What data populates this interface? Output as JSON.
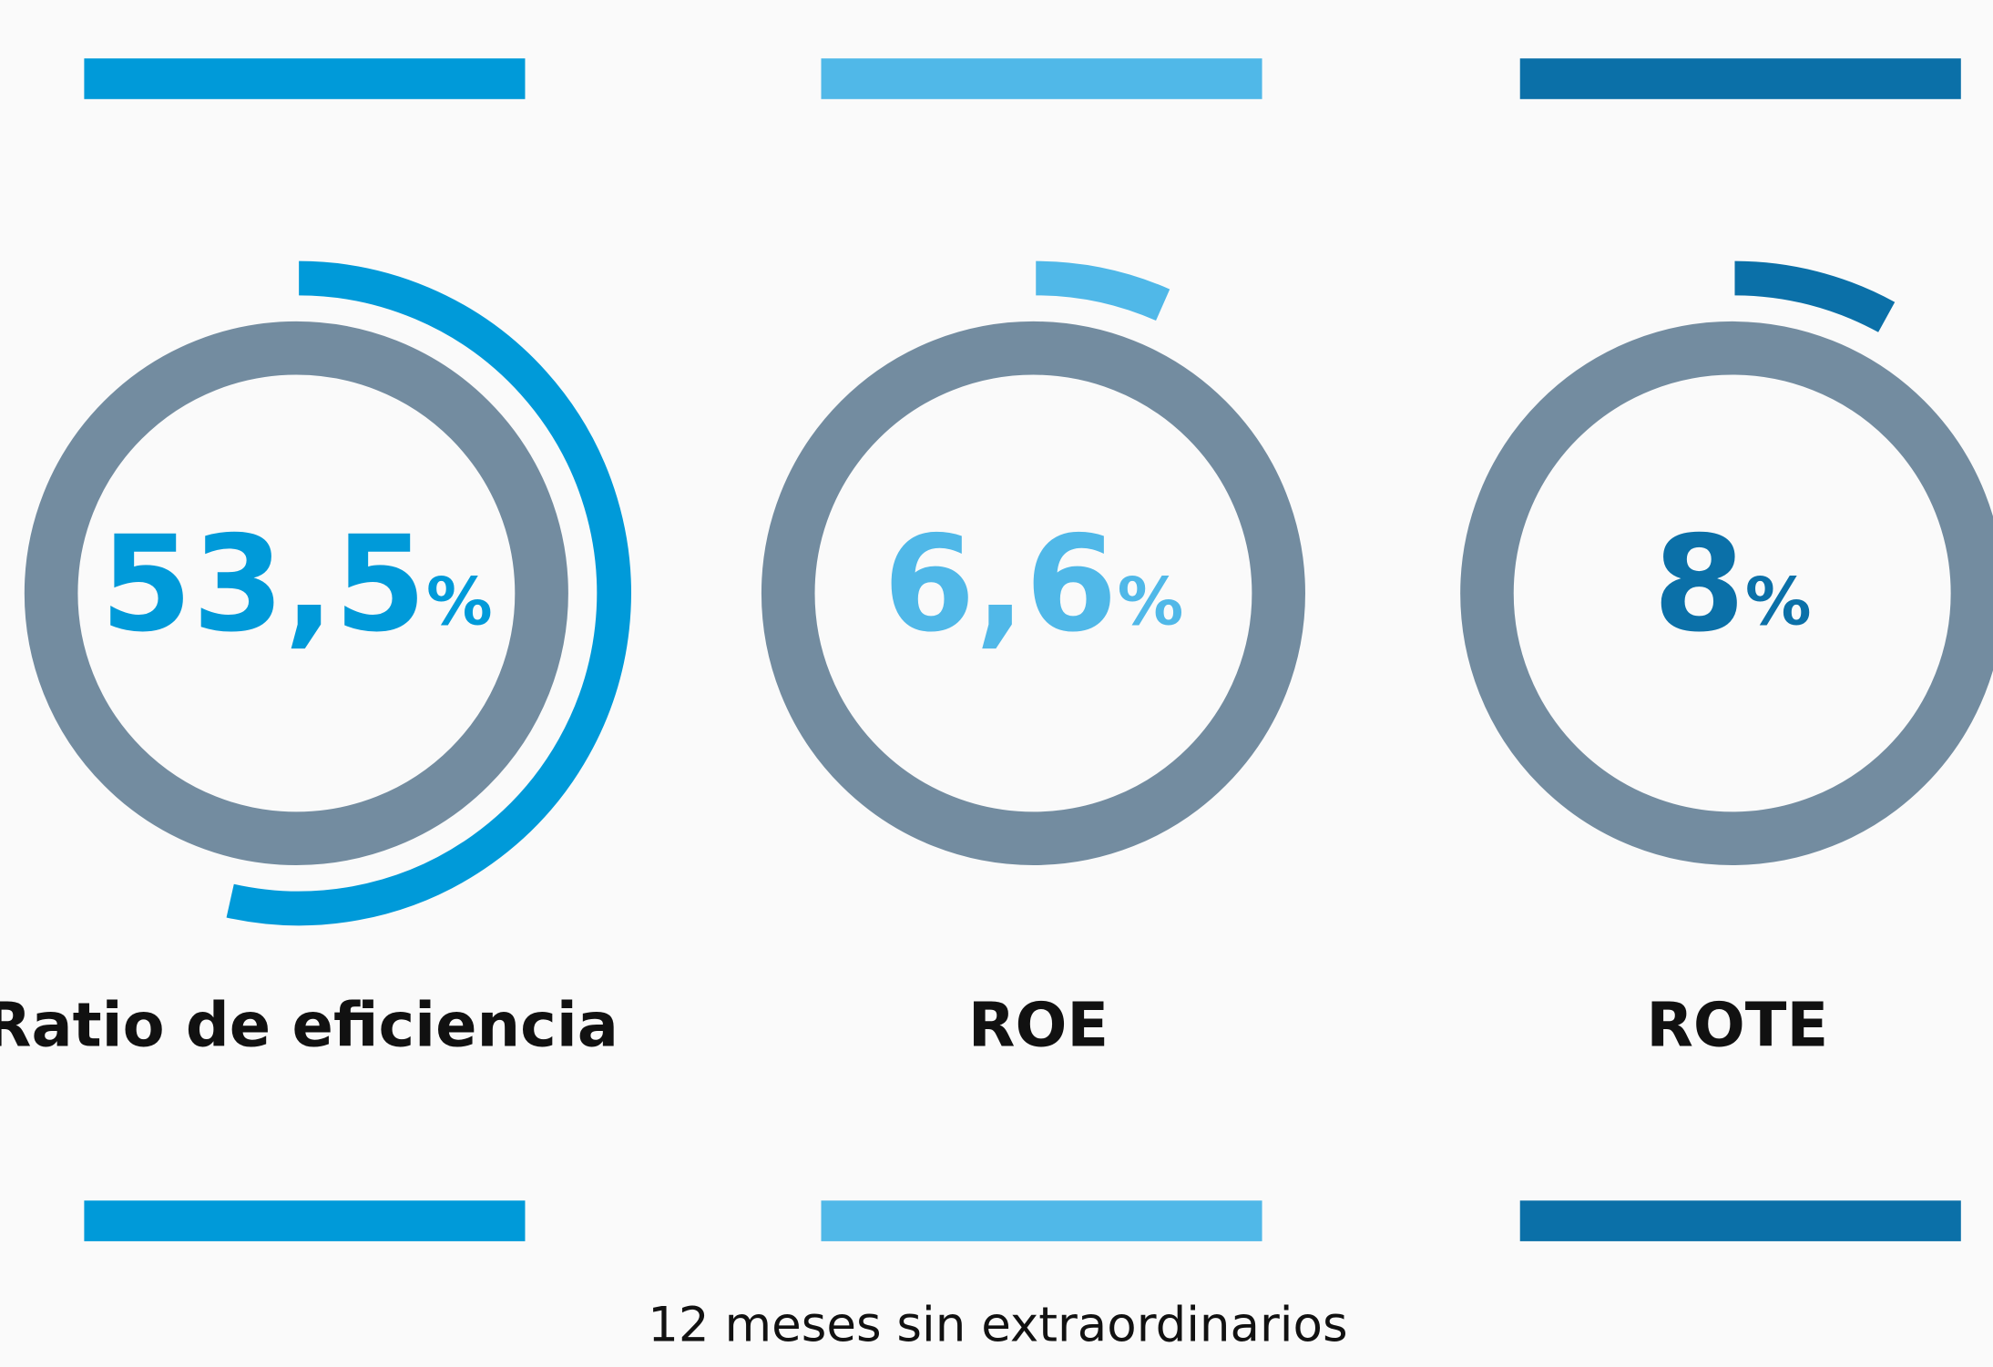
{
  "chart_data": [
    {
      "type": "gauge",
      "title": "Ratio de eficiencia",
      "values": [
        53.5
      ],
      "value_labels": [
        "53,5"
      ],
      "unit": "%",
      "color": "#009ad9",
      "ylim": [
        0,
        100
      ]
    },
    {
      "type": "gauge",
      "title": "ROE",
      "values": [
        6.6
      ],
      "value_labels": [
        "6,6"
      ],
      "unit": "%",
      "color": "#50b8e8",
      "ylim": [
        0,
        100
      ]
    },
    {
      "type": "gauge",
      "title": "ROTE",
      "values": [
        8
      ],
      "value_labels": [
        "8"
      ],
      "unit": "%",
      "color": "#0b70a8",
      "ylim": [
        0,
        100
      ]
    }
  ],
  "note": "12 meses sin extraordinarios"
}
